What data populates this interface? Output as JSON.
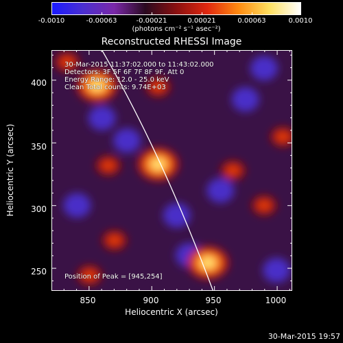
{
  "colorbar": {
    "tick_labels": [
      "-0.0010",
      "-0.00063",
      "-0.00021",
      "0.00021",
      "0.00063",
      "0.0010"
    ],
    "units": "(photons cm⁻² s⁻¹ asec⁻²)",
    "colors": [
      "#1a1aff",
      "#4b2fd0",
      "#7a28a8",
      "#2a0a20",
      "#8a1010",
      "#e02810",
      "#ff8a10",
      "#ffe060",
      "#ffffff"
    ]
  },
  "title": "Reconstructed RHESSI Image",
  "annotations": {
    "line1": "30-Mar-2015 11:37:02.000 to 11:43:02.000",
    "line2": "Detectors: 3F 5F 6F 7F 8F 9F, Att 0",
    "line3": "Energy Range: 12.0 - 25.0 keV",
    "line4": "Clean     Total counts: 9.74E+03",
    "peak": "Position of Peak = [945,254]"
  },
  "axes": {
    "xlabel": "Heliocentric X (arcsec)",
    "ylabel": "Heliocentric Y (arcsec)",
    "xticks": [
      "850",
      "900",
      "950",
      "1000"
    ],
    "yticks": [
      "400",
      "350",
      "300",
      "250"
    ],
    "xrange": [
      820,
      1012
    ],
    "yrange": [
      232,
      424
    ]
  },
  "datestamp": "30-Mar-2015 19:57",
  "image_sources": [
    {
      "x": 945,
      "y": 254,
      "kind": "bright"
    },
    {
      "x": 905,
      "y": 333,
      "kind": "bright"
    },
    {
      "x": 856,
      "y": 396,
      "kind": "bright"
    },
    {
      "x": 832,
      "y": 415,
      "kind": "mid"
    },
    {
      "x": 990,
      "y": 300,
      "kind": "mid"
    },
    {
      "x": 1005,
      "y": 355,
      "kind": "mid"
    },
    {
      "x": 870,
      "y": 272,
      "kind": "mid"
    },
    {
      "x": 905,
      "y": 395,
      "kind": "mid"
    },
    {
      "x": 865,
      "y": 332,
      "kind": "mid"
    },
    {
      "x": 965,
      "y": 328,
      "kind": "mid"
    },
    {
      "x": 850,
      "y": 244,
      "kind": "mid"
    }
  ]
}
